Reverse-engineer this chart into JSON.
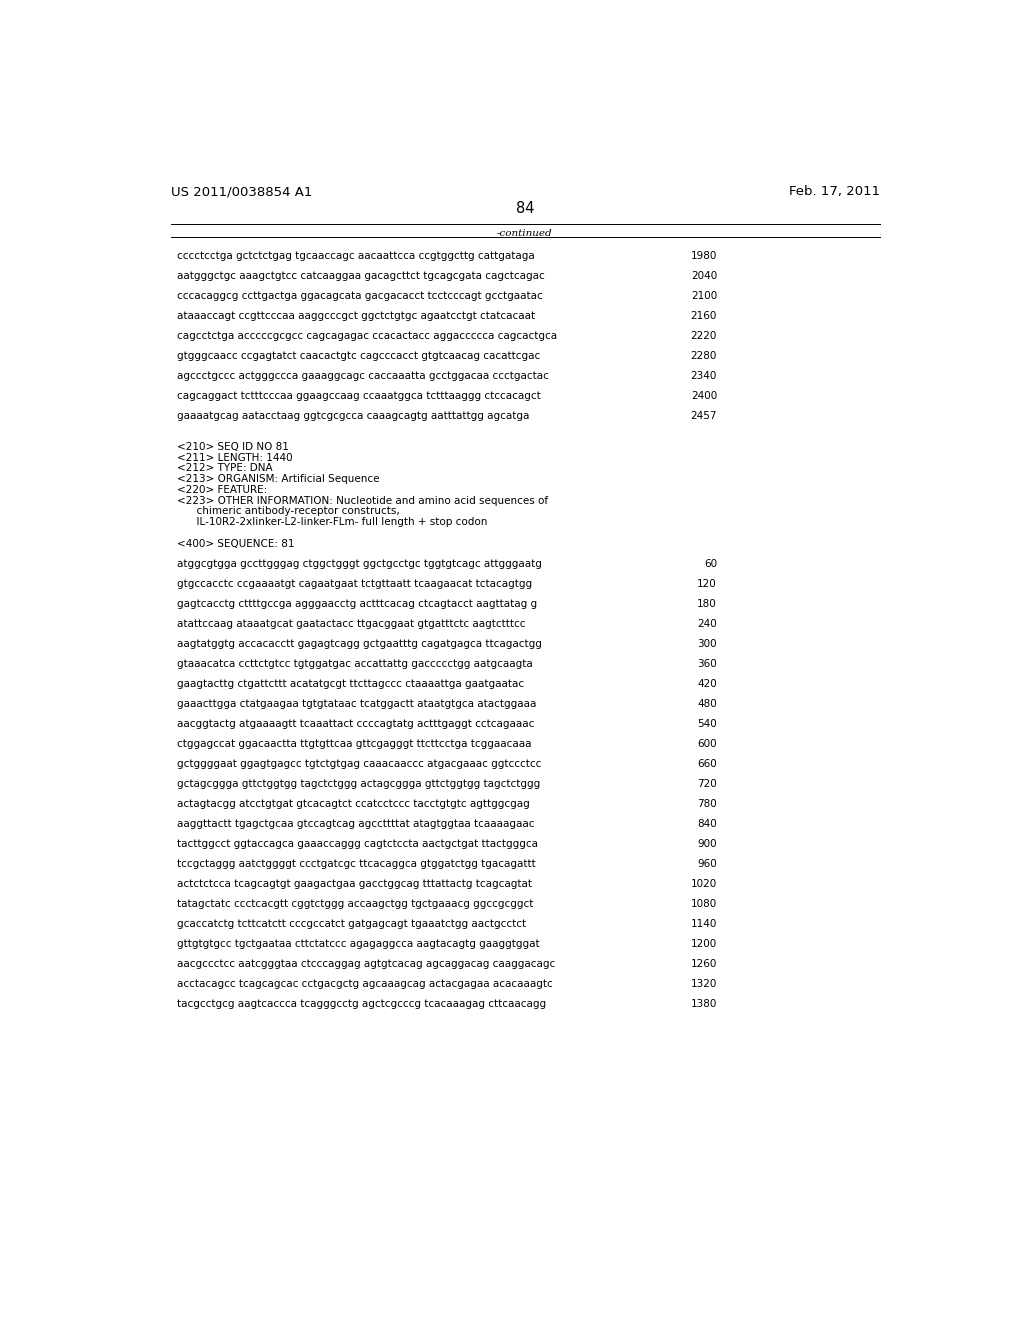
{
  "header_left": "US 2011/0038854 A1",
  "header_right": "Feb. 17, 2011",
  "page_number": "84",
  "continued_label": "-continued",
  "background_color": "#ffffff",
  "text_color": "#000000",
  "font_size_header": 9.5,
  "font_size_body": 7.5,
  "font_size_page": 10.5,
  "sequence_lines_top": [
    [
      "cccctcctga gctctctgag tgcaaccagc aacaattcca ccgtggcttg cattgataga",
      "1980"
    ],
    [
      "aatgggctgc aaagctgtcc catcaaggaa gacagcttct tgcagcgata cagctcagac",
      "2040"
    ],
    [
      "cccacaggcg ccttgactga ggacagcata gacgacacct tcctcccagt gcctgaatac",
      "2100"
    ],
    [
      "ataaaccagt ccgttcccaa aaggcccgct ggctctgtgc agaatcctgt ctatcacaat",
      "2160"
    ],
    [
      "cagcctctga acccccgcgcc cagcagagac ccacactacc aggaccccca cagcactgca",
      "2220"
    ],
    [
      "gtgggcaacc ccgagtatct caacactgtc cagcccacct gtgtcaacag cacattcgac",
      "2280"
    ],
    [
      "agccctgccc actgggccca gaaaggcagc caccaaatta gcctggacaa ccctgactac",
      "2340"
    ],
    [
      "cagcaggact tctttcccaa ggaagccaag ccaaatggca tctttaaggg ctccacagct",
      "2400"
    ],
    [
      "gaaaatgcag aatacctaag ggtcgcgcca caaagcagtg aatttattgg agcatga",
      "2457"
    ]
  ],
  "metadata_lines": [
    "<210> SEQ ID NO 81",
    "<211> LENGTH: 1440",
    "<212> TYPE: DNA",
    "<213> ORGANISM: Artificial Sequence",
    "<220> FEATURE:",
    "<223> OTHER INFORMATION: Nucleotide and amino acid sequences of",
    "      chimeric antibody-receptor constructs,",
    "      IL-10R2-2xlinker-L2-linker-FLm- full length + stop codon"
  ],
  "sequence_label": "<400> SEQUENCE: 81",
  "sequence_lines_bottom": [
    [
      "atggcgtgga gccttgggag ctggctgggt ggctgcctgc tggtgtcagc attgggaatg",
      "60"
    ],
    [
      "gtgccacctc ccgaaaatgt cagaatgaat tctgttaatt tcaagaacat tctacagtgg",
      "120"
    ],
    [
      "gagtcacctg cttttgccga agggaacctg actttcacag ctcagtacct aagttatag g",
      "180"
    ],
    [
      "atattccaag ataaatgcat gaatactacc ttgacggaat gtgatttctc aagtctttcc",
      "240"
    ],
    [
      "aagtatggtg accacacctt gagagtcagg gctgaatttg cagatgagca ttcagactgg",
      "300"
    ],
    [
      "gtaaacatca ccttctgtcc tgtggatgac accattattg gaccccctgg aatgcaagta",
      "360"
    ],
    [
      "gaagtacttg ctgattcttt acatatgcgt ttcttagccc ctaaaattga gaatgaatac",
      "420"
    ],
    [
      "gaaacttgga ctatgaagaa tgtgtataac tcatggactt ataatgtgca atactggaaa",
      "480"
    ],
    [
      "aacggtactg atgaaaagtt tcaaattact ccccagtatg actttgaggt cctcagaaac",
      "540"
    ],
    [
      "ctggagccat ggacaactta ttgtgttcaa gttcgagggt ttcttcctga tcggaacaaa",
      "600"
    ],
    [
      "gctggggaat ggagtgagcc tgtctgtgag caaacaaccc atgacgaaac ggtccctcc",
      "660"
    ],
    [
      "gctagcggga gttctggtgg tagctctggg actagcggga gttctggtgg tagctctggg",
      "720"
    ],
    [
      "actagtacgg atcctgtgat gtcacagtct ccatcctccc tacctgtgtc agttggcgag",
      "780"
    ],
    [
      "aaggttactt tgagctgcaa gtccagtcag agccttttat atagtggtaa tcaaaagaac",
      "840"
    ],
    [
      "tacttggcct ggtaccagca gaaaccaggg cagtctccta aactgctgat ttactgggca",
      "900"
    ],
    [
      "tccgctaggg aatctggggt ccctgatcgc ttcacaggca gtggatctgg tgacagattt",
      "960"
    ],
    [
      "actctctcca tcagcagtgt gaagactgaa gacctggcag tttattactg tcagcagtat",
      "1020"
    ],
    [
      "tatagctatc ccctcacgtt cggtctggg accaagctgg tgctgaaacg ggccgcggct",
      "1080"
    ],
    [
      "gcaccatctg tcttcatctt cccgccatct gatgagcagt tgaaatctgg aactgcctct",
      "1140"
    ],
    [
      "gttgtgtgcc tgctgaataa cttctatccc agagaggcca aagtacagtg gaaggtggat",
      "1200"
    ],
    [
      "aacgccctcc aatcgggtaa ctcccaggag agtgtcacag agcaggacag caaggacagc",
      "1260"
    ],
    [
      "acctacagcc tcagcagcac cctgacgctg agcaaagcag actacgagaa acacaaagtc",
      "1320"
    ],
    [
      "tacgcctgcg aagtcaccca tcagggcctg agctcgcccg tcacaaagag cttcaacagg",
      "1380"
    ]
  ]
}
